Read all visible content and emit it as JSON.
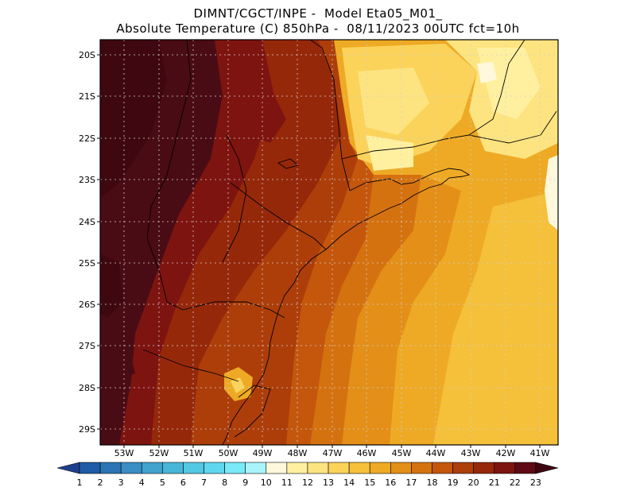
{
  "header": {
    "title_line1": "DIMNT/CGCT/INPE -  Model Eta05_M01_",
    "title_line2": "Absolute Temperature (C) 850hPa -  08/11/2023 00UTC fct=10h"
  },
  "map": {
    "lat_labels": [
      "20S",
      "21S",
      "22S",
      "23S",
      "24S",
      "25S",
      "26S",
      "27S",
      "28S",
      "29S"
    ],
    "lon_labels": [
      "53W",
      "52W",
      "51W",
      "50W",
      "49W",
      "48W",
      "47W",
      "46W",
      "45W",
      "44W",
      "43W",
      "42W",
      "41W"
    ]
  },
  "colorbar": {
    "labels": [
      "1",
      "2",
      "3",
      "4",
      "5",
      "6",
      "7",
      "8",
      "9",
      "10",
      "11",
      "12",
      "13",
      "14",
      "15",
      "16",
      "17",
      "18",
      "19",
      "20",
      "21",
      "22",
      "23"
    ],
    "colors": [
      "#1e3f8c",
      "#1f5aa6",
      "#2b74b5",
      "#3a8ec4",
      "#3fa3cc",
      "#48b6d8",
      "#52c8e4",
      "#5fd8ee",
      "#78eaf8",
      "#a9f4fb",
      "#fff8dc",
      "#fff0a0",
      "#fde480",
      "#fbd35a",
      "#f5c03a",
      "#eeaa25",
      "#e38f18",
      "#d57210",
      "#c4570c",
      "#ad3e0a",
      "#96280a",
      "#7e1410",
      "#5e0a14",
      "#3f0810"
    ]
  },
  "colors": {
    "land_far_west": "#4a0c14",
    "coast_lightest": "#fff8dc"
  }
}
